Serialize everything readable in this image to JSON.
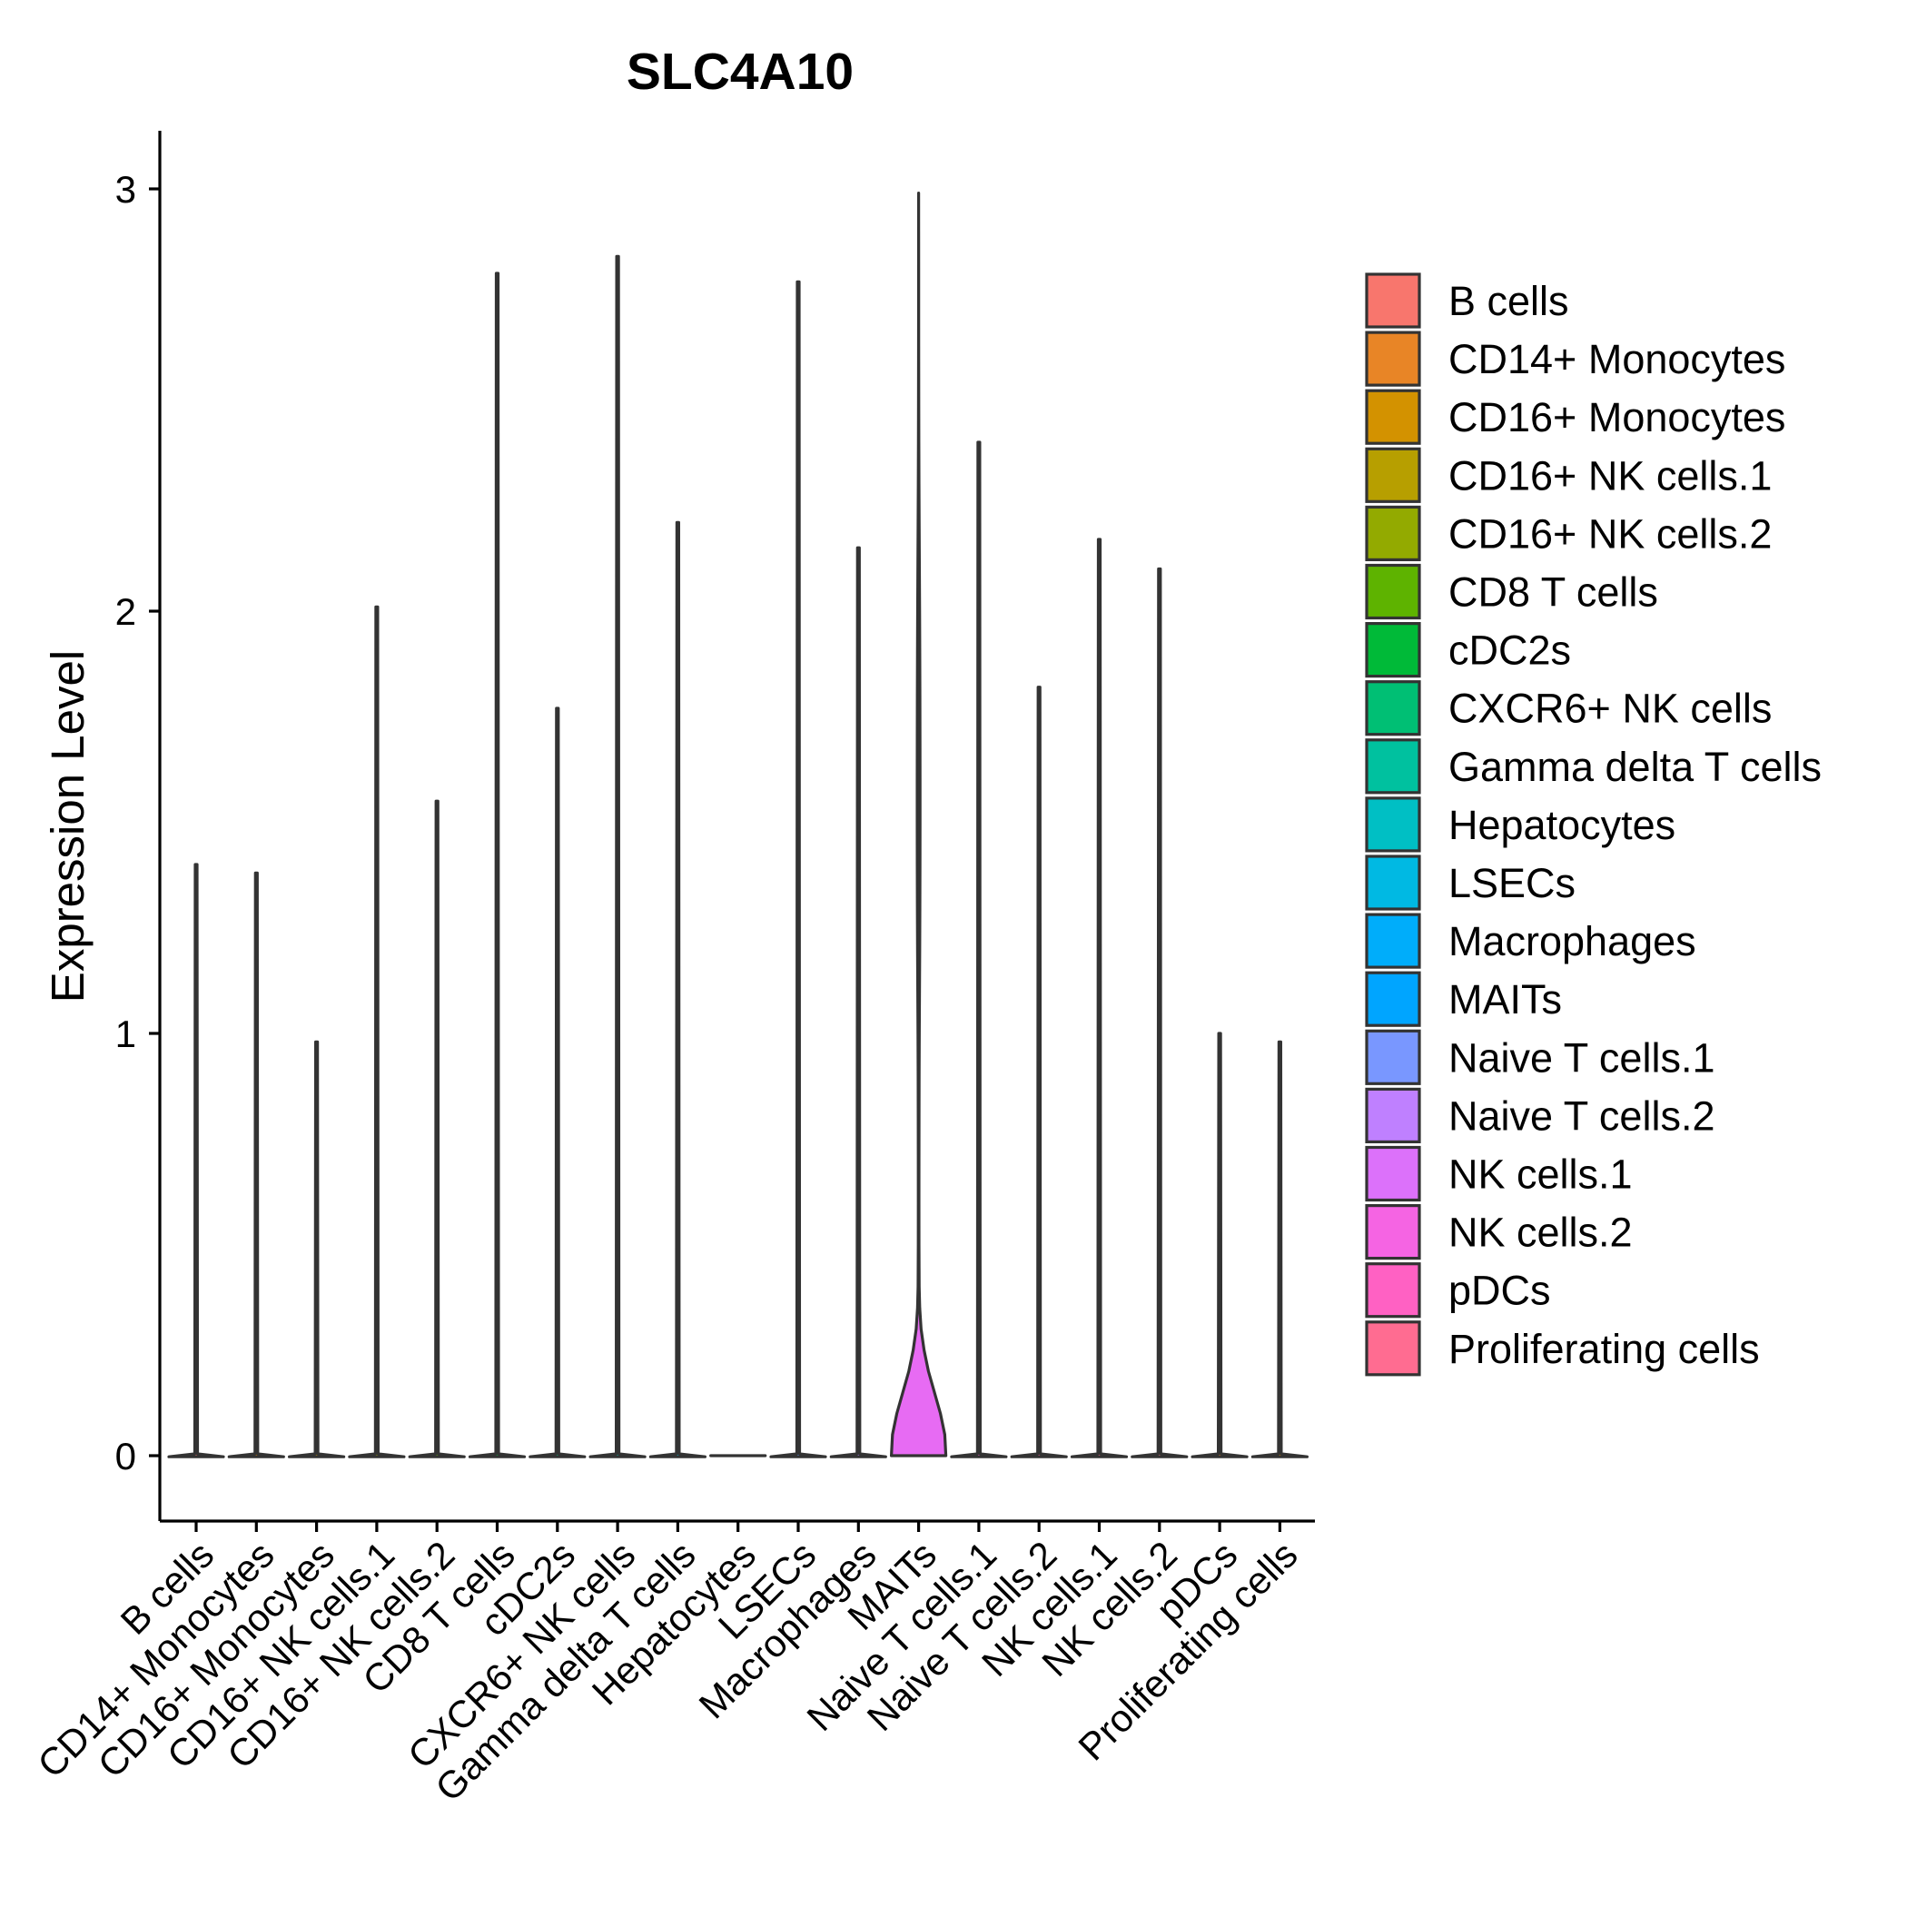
{
  "chart_data": {
    "type": "violin",
    "title": "SLC4A10",
    "xlabel": "",
    "ylabel": "Expression Level",
    "ylim": [
      -0.15,
      3.14
    ],
    "yticks": [
      0,
      1,
      2,
      3
    ],
    "legend_position": "right",
    "categories": [
      "B cells",
      "CD14+ Monocytes",
      "CD16+ Monocytes",
      "CD16+ NK cells.1",
      "CD16+ NK cells.2",
      "CD8 T cells",
      "cDC2s",
      "CXCR6+ NK cells",
      "Gamma delta T cells",
      "Hepatocytes",
      "LSECs",
      "Macrophages",
      "MAITs",
      "Naive T cells.1",
      "Naive T cells.2",
      "NK cells.1",
      "NK cells.2",
      "pDCs",
      "Proliferating cells"
    ],
    "max_values": [
      1.4,
      1.38,
      0.98,
      2.01,
      1.55,
      2.8,
      1.77,
      2.84,
      2.21,
      0,
      2.78,
      2.15,
      2.99,
      2.4,
      1.82,
      2.17,
      2.1,
      1.0,
      0.98
    ],
    "colors": [
      "#F8766D",
      "#E58700",
      "#C99800",
      "#A3A500",
      "#6BB100",
      "#00BA38",
      "#00BF7D",
      "#00C0AF",
      "#00BCD8",
      "#00B0F6",
      "#619CFF",
      "#B983FF",
      "#E76BF3",
      "#FD61D1",
      "#FF67A4",
      "#FF6C91",
      "#F07D8B",
      "#E88527",
      "#D89000"
    ],
    "legend_colors": [
      "#F8766D",
      "#E88526",
      "#D39200",
      "#B79F00",
      "#93AA00",
      "#5EB300",
      "#00BA38",
      "#00BF74",
      "#00C19F",
      "#00BFC4",
      "#00B9E3",
      "#00ADFA",
      "#00A5FF",
      "#7997FF",
      "#BF80FF",
      "#DC71FA",
      "#F564E3",
      "#FF61C3",
      "#FF6C91"
    ],
    "maits_density": {
      "y": [
        0,
        0.05,
        0.1,
        0.15,
        0.2,
        0.25,
        0.3,
        0.35,
        0.4,
        0.5,
        0.6,
        0.7,
        0.8,
        0.9,
        1.0,
        1.1,
        1.2,
        1.3,
        1.4,
        1.5,
        1.6,
        1.7,
        1.8,
        1.9,
        2.0,
        2.1,
        2.2,
        2.3,
        2.4,
        2.5,
        2.6,
        2.7,
        2.8,
        2.9,
        2.99
      ],
      "half_width": [
        1.0,
        0.96,
        0.8,
        0.58,
        0.36,
        0.2,
        0.09,
        0.04,
        0.02,
        0.013,
        0.012,
        0.013,
        0.015,
        0.018,
        0.024,
        0.032,
        0.04,
        0.046,
        0.05,
        0.052,
        0.052,
        0.05,
        0.047,
        0.042,
        0.036,
        0.028,
        0.02,
        0.013,
        0.008,
        0.005,
        0.003,
        0.002,
        0.002,
        0.001,
        0.0
      ]
    }
  }
}
